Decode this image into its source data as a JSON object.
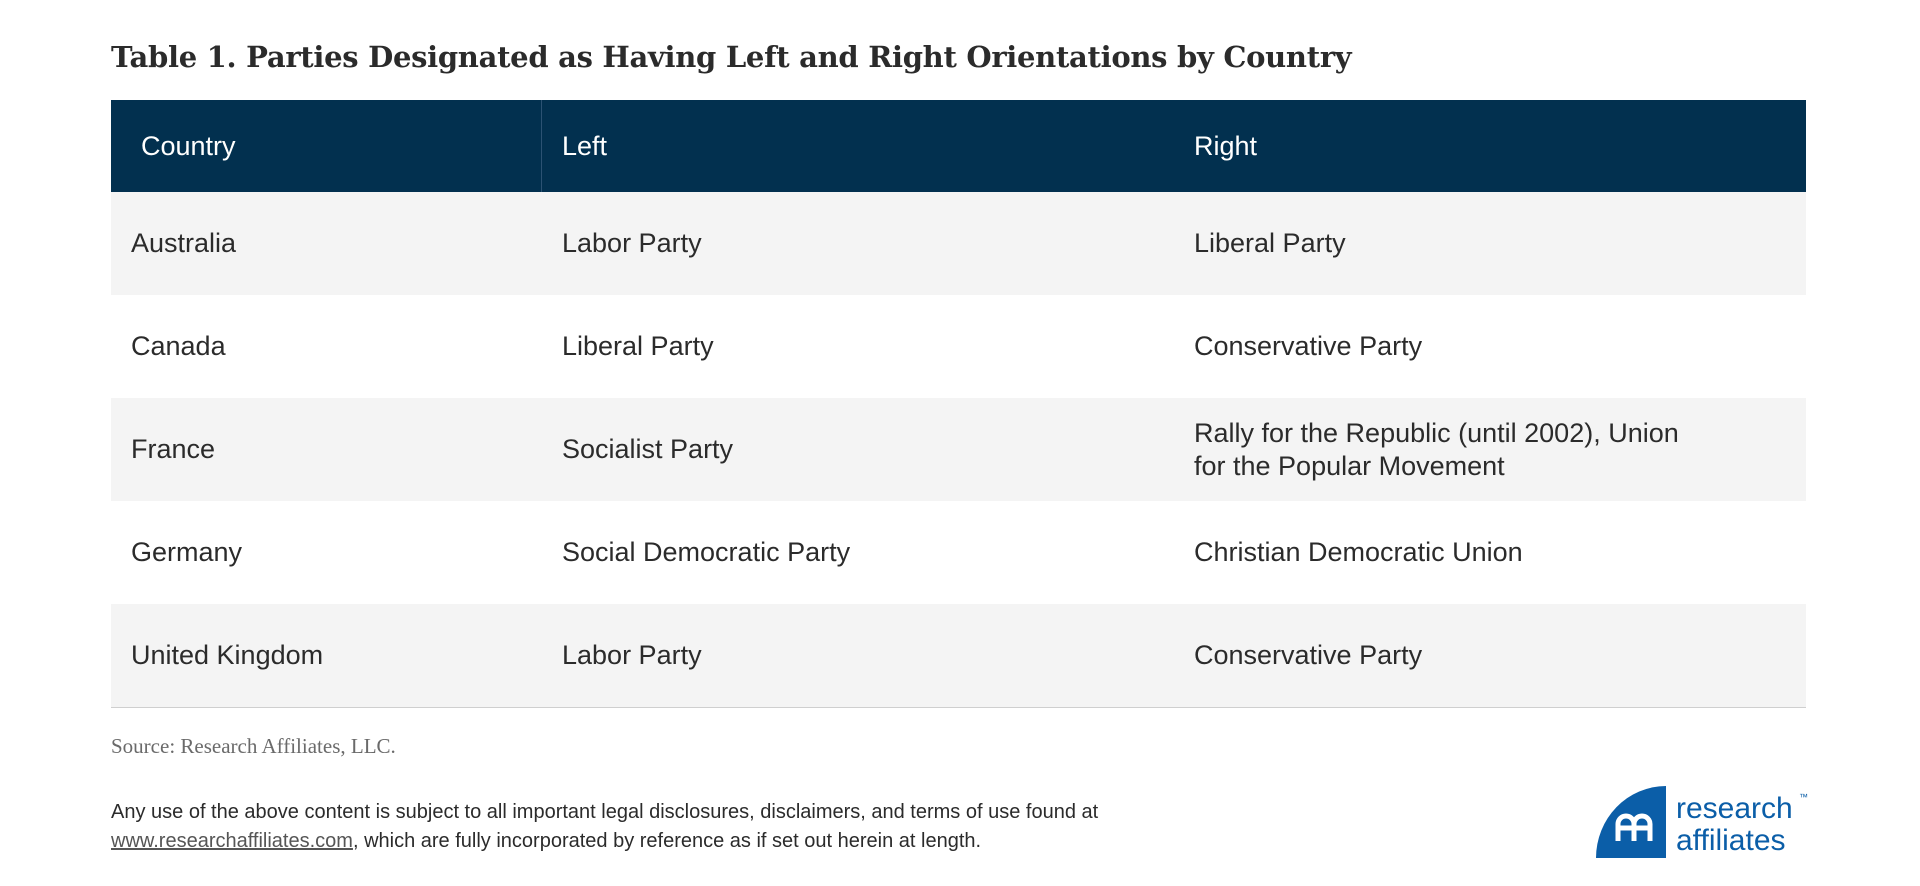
{
  "title": "Table 1. Parties Designated as Having Left and Right Orientations by Country",
  "table": {
    "headers": [
      "Country",
      "Left",
      "Right"
    ],
    "rows": [
      [
        "Australia",
        "Labor Party",
        "Liberal Party"
      ],
      [
        "Canada",
        "Liberal Party",
        "Conservative Party"
      ],
      [
        "France",
        "Socialist Party",
        "Rally for the Republic (until 2002), Union for the Popular Movement"
      ],
      [
        "Germany",
        "Social Democratic Party",
        "Christian Democratic Union"
      ],
      [
        "United Kingdom",
        "Labor Party",
        "Conservative Party"
      ]
    ]
  },
  "source": "Source: Research Affiliates, LLC.",
  "disclaimer": {
    "line1": "Any use of the above content is subject to all important legal disclosures, disclaimers, and terms of use found at",
    "link": "www.researchaffiliates.com",
    "line2_rest": ", which are fully incorporated by reference as if set out herein at length."
  },
  "logo": {
    "line1": "research",
    "line2": "affiliates",
    "tm": "™"
  },
  "colors": {
    "header_bg": "#02304f",
    "row_alt": "#f4f4f4",
    "brand_blue": "#0b5ea8"
  }
}
